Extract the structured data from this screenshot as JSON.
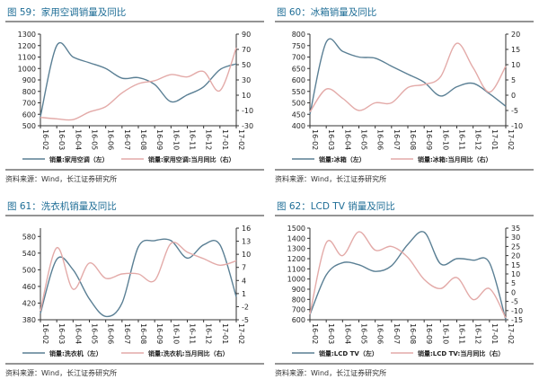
{
  "colors": {
    "left_series": "#5a7f94",
    "right_series": "#e3aaa8",
    "title": "#1e6d96",
    "rule": "#555555"
  },
  "chart_data": [
    {
      "type": "line",
      "title": "图 59：家用空调销量及同比",
      "source": "资料来源：Wind，长江证券研究所",
      "categories": [
        "16-02",
        "16-03",
        "16-04",
        "16-05",
        "16-06",
        "16-07",
        "16-08",
        "16-09",
        "16-10",
        "16-11",
        "16-12",
        "17-01",
        "17-02"
      ],
      "y_left": {
        "min": 500,
        "max": 1300,
        "ticks": [
          500,
          600,
          700,
          800,
          900,
          1000,
          1100,
          1200,
          1300
        ]
      },
      "y_right": {
        "min": -30,
        "max": 90,
        "ticks": [
          -30,
          -10,
          10,
          30,
          50,
          70,
          90
        ]
      },
      "series": [
        {
          "name": "销量:家用空调（左）",
          "axis": "left",
          "values": [
            580,
            1200,
            1100,
            1050,
            1000,
            915,
            920,
            860,
            710,
            770,
            840,
            990,
            1040
          ]
        },
        {
          "name": "销量:家用空调:当月同比（右）",
          "axis": "right",
          "values": [
            -19,
            -21,
            -22,
            -12,
            -5,
            13,
            25,
            29,
            37,
            34,
            41,
            16,
            72
          ]
        }
      ],
      "legend": "bottom",
      "grid": false
    },
    {
      "type": "line",
      "title": "图 60：冰箱销量及同比",
      "source": "资料来源：Wind，长江证券研究所",
      "categories": [
        "16-02",
        "16-03",
        "16-04",
        "16-05",
        "16-06",
        "16-07",
        "16-08",
        "16-09",
        "16-10",
        "16-11",
        "16-12",
        "17-01",
        "17-02"
      ],
      "y_left": {
        "min": 400,
        "max": 800,
        "ticks": [
          400,
          450,
          500,
          550,
          600,
          650,
          700,
          750,
          800
        ]
      },
      "y_right": {
        "min": -10,
        "max": 20,
        "ticks": [
          -10,
          -5,
          0,
          5,
          10,
          15,
          20
        ]
      },
      "series": [
        {
          "name": "销量:冰箱（左）",
          "axis": "left",
          "values": [
            450,
            765,
            725,
            700,
            695,
            660,
            625,
            590,
            530,
            570,
            585,
            540,
            485
          ]
        },
        {
          "name": "销量:冰箱:当月同比（右）",
          "axis": "right",
          "values": [
            -5.5,
            2,
            -1,
            -5,
            -2.5,
            -2.5,
            2.5,
            3.5,
            6,
            17,
            9,
            1,
            9.5
          ]
        }
      ],
      "legend": "bottom",
      "grid": false
    },
    {
      "type": "line",
      "title": "图 61：洗衣机销量及同比",
      "source": "资料来源：Wind，长江证券研究所",
      "categories": [
        "16-02",
        "16-03",
        "16-04",
        "16-05",
        "16-06",
        "16-07",
        "16-08",
        "16-09",
        "16-10",
        "16-11",
        "16-12",
        "17-01",
        "17-02"
      ],
      "y_left": {
        "min": 380,
        "max": 600,
        "ticks": [
          380,
          420,
          460,
          500,
          540,
          580
        ]
      },
      "y_right": {
        "min": -5,
        "max": 16,
        "ticks": [
          -5,
          -2,
          1,
          4,
          7,
          10,
          13,
          16
        ]
      },
      "series": [
        {
          "name": "销量:洗衣机（左）",
          "axis": "left",
          "values": [
            395,
            525,
            500,
            430,
            388,
            420,
            555,
            570,
            570,
            528,
            560,
            560,
            435
          ]
        },
        {
          "name": "销量:洗衣机:当月同比（右）",
          "axis": "right",
          "values": [
            -3,
            11.5,
            2,
            8,
            4.5,
            5.5,
            5.5,
            4,
            12.5,
            10.5,
            9,
            7.5,
            8.5
          ]
        }
      ],
      "legend": "bottom",
      "grid": false
    },
    {
      "type": "line",
      "title": "图 62：LCD TV 销量及同比",
      "source": "资料来源：Wind，长江证券研究所",
      "categories": [
        "16-02",
        "16-03",
        "16-04",
        "16-05",
        "16-06",
        "16-07",
        "16-08",
        "16-09",
        "16-10",
        "16-11",
        "16-12",
        "17-01",
        "17-02"
      ],
      "y_left": {
        "min": 600,
        "max": 1500,
        "ticks": [
          600,
          700,
          800,
          900,
          1000,
          1100,
          1200,
          1300,
          1400,
          1500
        ]
      },
      "y_right": {
        "min": -15,
        "max": 35,
        "ticks": [
          -15,
          -10,
          -5,
          0,
          5,
          10,
          15,
          20,
          25,
          30,
          35
        ]
      },
      "series": [
        {
          "name": "销量:LCD TV（左）",
          "axis": "left",
          "values": [
            650,
            1040,
            1160,
            1140,
            1075,
            1130,
            1340,
            1460,
            1150,
            1200,
            1185,
            1160,
            600
          ]
        },
        {
          "name": "销量:LCD TV:当月同比（右）",
          "axis": "right",
          "values": [
            -12,
            27,
            20,
            33,
            23,
            25,
            19,
            7,
            2,
            8,
            -4,
            2,
            -14
          ]
        }
      ],
      "legend": "bottom",
      "grid": false
    }
  ]
}
